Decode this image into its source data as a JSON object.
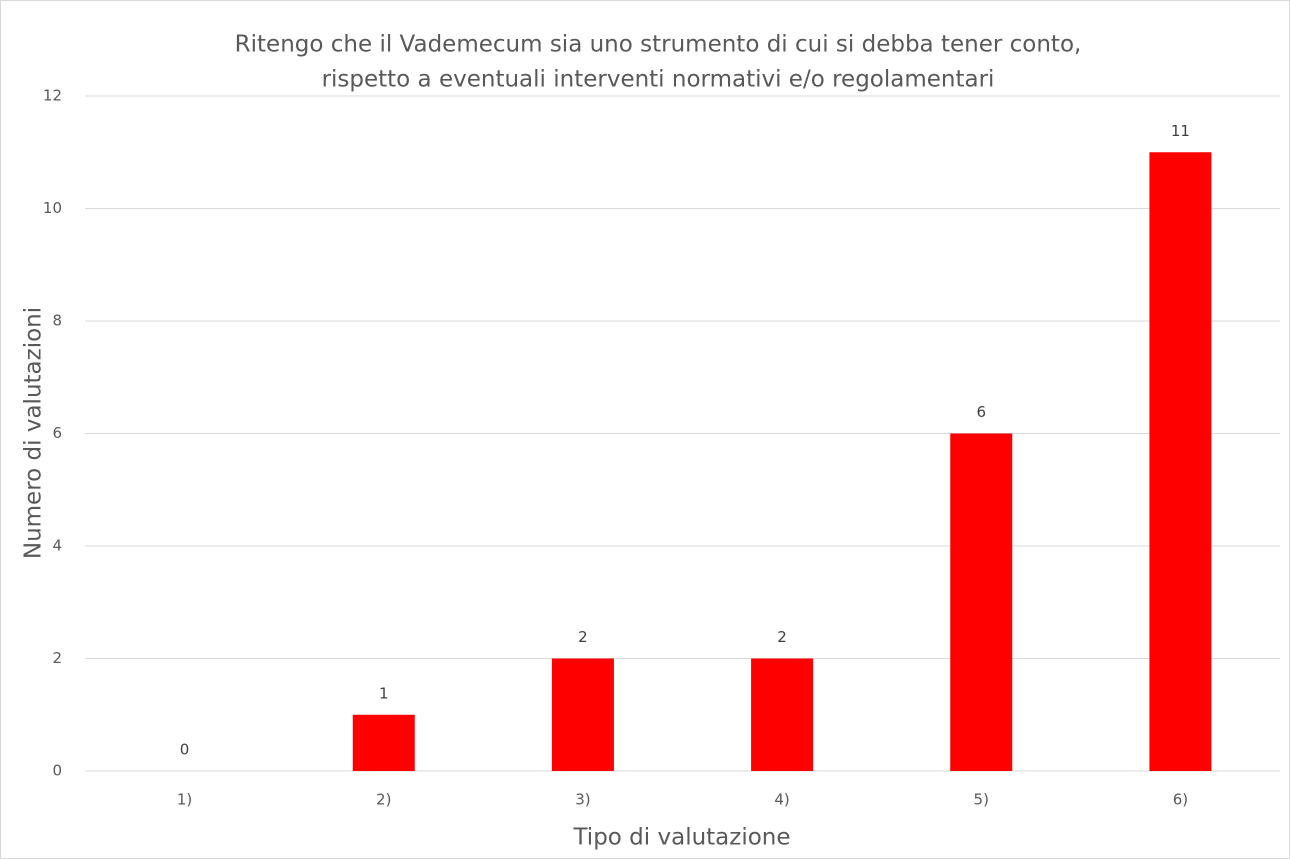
{
  "chart_data": {
    "type": "bar",
    "title": [
      "Ritengo che il Vademecum sia uno strumento di cui si debba tener conto,",
      "rispetto a eventuali interventi normativi e/o regolamentari"
    ],
    "x_label": "Tipo di valutazione",
    "y_label": "Numero di valutazioni",
    "categories": [
      "1)",
      "2)",
      "3)",
      "4)",
      "5)",
      "6)"
    ],
    "values": [
      0,
      1,
      2,
      2,
      6,
      11
    ],
    "color": "#ff0000",
    "ylim": [
      0,
      12
    ],
    "yticks": [
      0,
      2,
      4,
      6,
      8,
      10,
      12
    ],
    "grid": true
  }
}
